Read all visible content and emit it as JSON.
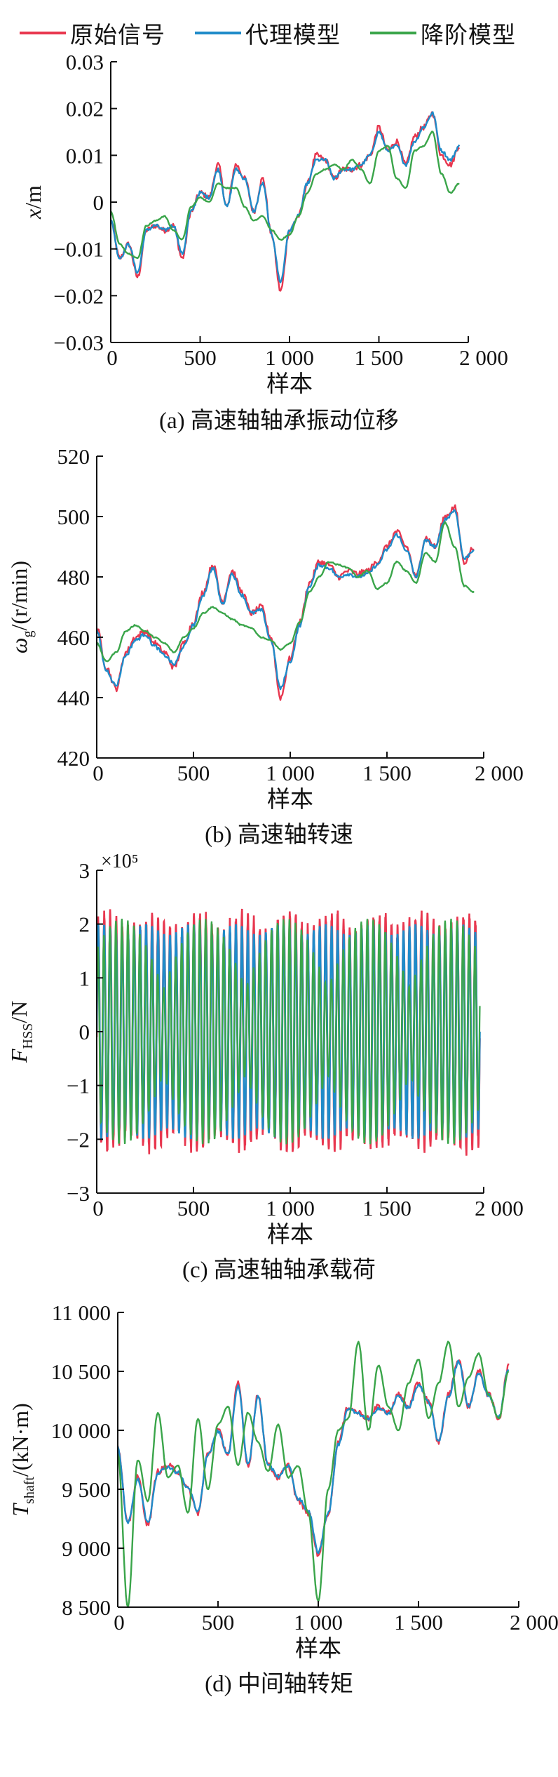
{
  "legend": {
    "items": [
      {
        "label": "原始信号",
        "color": "#e8374f"
      },
      {
        "label": "代理模型",
        "color": "#1f8bc9"
      },
      {
        "label": "降阶模型",
        "color": "#3aa54a"
      }
    ]
  },
  "chart_data": [
    {
      "type": "line",
      "caption": "(a) 高速轴轴承振动位移",
      "xlabel": "样本",
      "ylabel": "x/m",
      "ylabel_italic": "x",
      "ylabel_rest": "/m",
      "exponent": "",
      "xlim": [
        0,
        2000
      ],
      "ylim": [
        -0.03,
        0.03
      ],
      "xticks": [
        0,
        500,
        1000,
        1500,
        2000
      ],
      "xtick_labels": [
        "0",
        "500",
        "1 000",
        "1 500",
        "2 000"
      ],
      "yticks": [
        -0.03,
        -0.02,
        -0.01,
        0,
        0.01,
        0.02,
        0.03
      ],
      "ytick_labels": [
        "−0.03",
        "−0.02",
        "−0.01",
        "0",
        "0.01",
        "0.02",
        "0.03"
      ],
      "x": [
        0,
        50,
        100,
        150,
        200,
        250,
        300,
        350,
        400,
        450,
        500,
        550,
        600,
        650,
        700,
        750,
        800,
        850,
        900,
        950,
        1000,
        1050,
        1100,
        1150,
        1200,
        1250,
        1300,
        1350,
        1400,
        1450,
        1500,
        1550,
        1600,
        1650,
        1700,
        1750,
        1800,
        1850,
        1900,
        1950
      ],
      "series": [
        {
          "name": "原始信号",
          "values": [
            -0.004,
            -0.012,
            -0.009,
            -0.016,
            -0.006,
            -0.005,
            -0.006,
            -0.005,
            -0.012,
            -0.002,
            0.002,
            0.001,
            0.008,
            -0.001,
            0.008,
            0.005,
            -0.002,
            0.005,
            -0.007,
            -0.019,
            -0.006,
            -0.003,
            0.004,
            0.01,
            0.009,
            0.005,
            0.007,
            0.007,
            0.008,
            0.01,
            0.016,
            0.011,
            0.013,
            0.008,
            0.014,
            0.016,
            0.019,
            0.01,
            0.008,
            0.012
          ]
        },
        {
          "name": "代理模型",
          "values": [
            -0.004,
            -0.012,
            -0.009,
            -0.015,
            -0.006,
            -0.005,
            -0.006,
            -0.005,
            -0.011,
            -0.002,
            0.002,
            0.001,
            0.007,
            -0.001,
            0.007,
            0.005,
            -0.002,
            0.004,
            -0.007,
            -0.017,
            -0.006,
            -0.003,
            0.004,
            0.009,
            0.009,
            0.005,
            0.007,
            0.007,
            0.008,
            0.01,
            0.015,
            0.011,
            0.012,
            0.008,
            0.013,
            0.016,
            0.019,
            0.011,
            0.009,
            0.012
          ]
        },
        {
          "name": "降阶模型",
          "values": [
            -0.002,
            -0.009,
            -0.011,
            -0.012,
            -0.005,
            -0.004,
            -0.003,
            -0.006,
            -0.008,
            -0.001,
            0.001,
            0.0,
            0.004,
            0.003,
            0.003,
            -0.001,
            -0.004,
            -0.003,
            -0.006,
            -0.008,
            -0.007,
            -0.003,
            0.002,
            0.006,
            0.007,
            0.008,
            0.007,
            0.009,
            0.007,
            0.004,
            0.011,
            0.012,
            0.005,
            0.003,
            0.011,
            0.012,
            0.015,
            0.006,
            0.002,
            0.004
          ]
        }
      ]
    },
    {
      "type": "line",
      "caption": "(b) 高速轴转速",
      "xlabel": "样本",
      "ylabel": "ωg/(r/min)",
      "ylabel_italic": "ω",
      "ylabel_sub": "g",
      "ylabel_rest": "/(r/min)",
      "exponent": "",
      "xlim": [
        0,
        2000
      ],
      "ylim": [
        420,
        520
      ],
      "xticks": [
        0,
        500,
        1000,
        1500,
        2000
      ],
      "xtick_labels": [
        "0",
        "500",
        "1 000",
        "1 500",
        "2 000"
      ],
      "yticks": [
        420,
        440,
        460,
        480,
        500,
        520
      ],
      "ytick_labels": [
        "420",
        "440",
        "460",
        "480",
        "500",
        "520"
      ],
      "x": [
        0,
        50,
        100,
        150,
        200,
        250,
        300,
        350,
        400,
        450,
        500,
        550,
        600,
        650,
        700,
        750,
        800,
        850,
        900,
        950,
        1000,
        1050,
        1100,
        1150,
        1200,
        1250,
        1300,
        1350,
        1400,
        1450,
        1500,
        1550,
        1600,
        1650,
        1700,
        1750,
        1800,
        1850,
        1900,
        1950
      ],
      "series": [
        {
          "name": "原始信号",
          "values": [
            463,
            450,
            443,
            455,
            460,
            462,
            458,
            455,
            450,
            458,
            465,
            475,
            484,
            472,
            482,
            475,
            468,
            470,
            460,
            440,
            453,
            465,
            478,
            485,
            484,
            480,
            482,
            481,
            482,
            485,
            490,
            495,
            490,
            480,
            493,
            490,
            500,
            503,
            485,
            490
          ]
        },
        {
          "name": "代理模型",
          "values": [
            462,
            449,
            444,
            454,
            459,
            461,
            457,
            454,
            451,
            457,
            464,
            474,
            483,
            471,
            481,
            474,
            468,
            469,
            459,
            443,
            452,
            464,
            477,
            484,
            483,
            480,
            481,
            480,
            481,
            484,
            489,
            494,
            489,
            480,
            492,
            490,
            499,
            502,
            486,
            489
          ]
        },
        {
          "name": "降阶模型",
          "values": [
            458,
            452,
            455,
            462,
            464,
            462,
            460,
            458,
            455,
            460,
            463,
            468,
            470,
            468,
            466,
            464,
            463,
            460,
            459,
            456,
            458,
            465,
            475,
            480,
            485,
            484,
            483,
            480,
            482,
            476,
            478,
            485,
            482,
            478,
            488,
            485,
            498,
            490,
            477,
            475
          ]
        }
      ]
    },
    {
      "type": "line",
      "caption": "(c) 高速轴轴承载荷",
      "xlabel": "样本",
      "ylabel": "FHSS/N",
      "ylabel_italic": "F",
      "ylabel_sub": "HSS",
      "ylabel_rest": "/N",
      "exponent": "×10⁵",
      "xlim": [
        0,
        2000
      ],
      "ylim": [
        -3,
        3
      ],
      "xticks": [
        0,
        500,
        1000,
        1500,
        2000
      ],
      "xtick_labels": [
        "0",
        "500",
        "1 000",
        "1 500",
        "2 000"
      ],
      "yticks": [
        -3,
        -2,
        -1,
        0,
        1,
        2,
        3
      ],
      "ytick_labels": [
        "−3",
        "−2",
        "−1",
        "0",
        "1",
        "2",
        "3"
      ],
      "oscillation": {
        "cycles": 64,
        "raw_amplitude": [
          1.9,
          2.2
        ],
        "proxy_amplitude": [
          1.8,
          2.0
        ],
        "reduced_amplitude_range": [
          0.8,
          2.1
        ]
      },
      "series": [
        {
          "name": "原始信号",
          "amplitude_max": 2.4,
          "amplitude_min": -2.4
        },
        {
          "name": "代理模型",
          "amplitude_max": 2.0,
          "amplitude_min": -2.1
        },
        {
          "name": "降阶模型",
          "amplitude_max": 2.3,
          "amplitude_min": -2.1
        }
      ]
    },
    {
      "type": "line",
      "caption": "(d) 中间轴转矩",
      "xlabel": "样本",
      "ylabel": "Tshaft/(kN·m)",
      "ylabel_italic": "T",
      "ylabel_sub": "shaft",
      "ylabel_rest": "/(kN·m)",
      "exponent": "",
      "xlim": [
        0,
        2000
      ],
      "ylim": [
        8500,
        11000
      ],
      "xticks": [
        0,
        500,
        1000,
        1500,
        2000
      ],
      "xtick_labels": [
        "0",
        "500",
        "1 000",
        "1 500",
        "2 000"
      ],
      "yticks": [
        8500,
        9000,
        9500,
        10000,
        10500,
        11000
      ],
      "ytick_labels": [
        "8 500",
        "9 000",
        "9 500",
        "10 000",
        "10 500",
        "11 000"
      ],
      "x": [
        0,
        50,
        100,
        150,
        200,
        250,
        300,
        350,
        400,
        450,
        500,
        550,
        600,
        650,
        700,
        750,
        800,
        850,
        900,
        950,
        1000,
        1050,
        1100,
        1150,
        1200,
        1250,
        1300,
        1350,
        1400,
        1450,
        1500,
        1550,
        1600,
        1650,
        1700,
        1750,
        1800,
        1850,
        1900,
        1950
      ],
      "series": [
        {
          "name": "原始信号",
          "values": [
            9850,
            9200,
            9600,
            9200,
            9650,
            9700,
            9650,
            9500,
            9300,
            9800,
            10000,
            9800,
            10400,
            9700,
            10300,
            9700,
            9600,
            9700,
            9400,
            9300,
            8950,
            9300,
            9900,
            10200,
            10150,
            10100,
            10200,
            10150,
            10300,
            10200,
            10400,
            10250,
            9900,
            10300,
            10600,
            10200,
            10500,
            10300,
            10100,
            10550
          ]
        },
        {
          "name": "代理模型",
          "values": [
            9850,
            9220,
            9580,
            9220,
            9640,
            9690,
            9640,
            9510,
            9320,
            9790,
            9990,
            9800,
            10380,
            9710,
            10290,
            9710,
            9610,
            9700,
            9420,
            9320,
            8970,
            9300,
            9880,
            10180,
            10140,
            10090,
            10190,
            10140,
            10290,
            10190,
            10380,
            10240,
            9910,
            10290,
            10580,
            10200,
            10480,
            10300,
            10110,
            10520
          ]
        },
        {
          "name": "降阶模型",
          "values": [
            9800,
            8500,
            9750,
            9400,
            10150,
            9600,
            9700,
            9300,
            10100,
            9500,
            10050,
            10200,
            9700,
            10150,
            9900,
            9650,
            10050,
            9600,
            9700,
            9300,
            8550,
            9500,
            10000,
            10100,
            10750,
            10000,
            10550,
            10200,
            10000,
            10400,
            10600,
            10100,
            10400,
            10750,
            10200,
            10450,
            10650,
            10300,
            10100,
            10500
          ]
        }
      ]
    }
  ]
}
